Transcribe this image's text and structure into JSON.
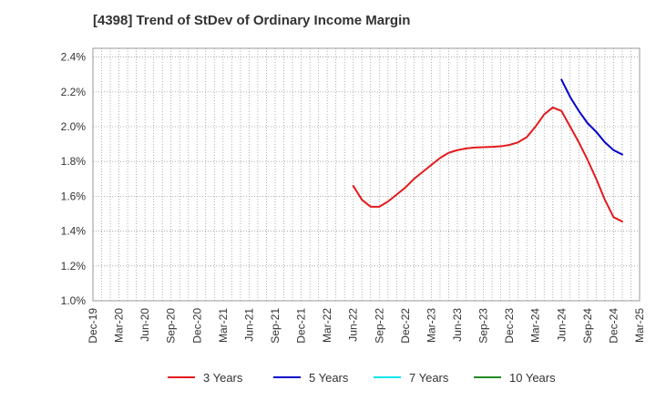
{
  "chart_data": {
    "type": "line",
    "title": "[4398]  Trend of StDev of Ordinary Income Margin",
    "xlabel": "",
    "ylabel": "",
    "x_tick_labels": [
      "Dec-19",
      "Mar-20",
      "Jun-20",
      "Sep-20",
      "Dec-20",
      "Mar-21",
      "Jun-21",
      "Sep-21",
      "Dec-21",
      "Mar-22",
      "Jun-22",
      "Sep-22",
      "Dec-22",
      "Mar-23",
      "Jun-23",
      "Sep-23",
      "Dec-23",
      "Mar-24",
      "Jun-24",
      "Sep-24",
      "Dec-24",
      "Mar-25"
    ],
    "y_tick_labels": [
      "1.0%",
      "1.2%",
      "1.4%",
      "1.6%",
      "1.8%",
      "2.0%",
      "2.2%",
      "2.4%"
    ],
    "ylim": [
      1.0,
      2.45
    ],
    "y_unit": "%",
    "grid": true,
    "legend_position": "bottom",
    "series": [
      {
        "name": "3 Years",
        "color": "#e41a1c",
        "points": [
          [
            "Jun-22",
            1.66
          ],
          [
            "Jul-22",
            1.58
          ],
          [
            "Aug-22",
            1.54
          ],
          [
            "Sep-22",
            1.54
          ],
          [
            "Oct-22",
            1.57
          ],
          [
            "Nov-22",
            1.61
          ],
          [
            "Dec-22",
            1.65
          ],
          [
            "Jan-23",
            1.7
          ],
          [
            "Feb-23",
            1.74
          ],
          [
            "Mar-23",
            1.78
          ],
          [
            "Apr-23",
            1.82
          ],
          [
            "May-23",
            1.85
          ],
          [
            "Jun-23",
            1.865
          ],
          [
            "Jul-23",
            1.875
          ],
          [
            "Aug-23",
            1.88
          ],
          [
            "Sep-23",
            1.882
          ],
          [
            "Oct-23",
            1.884
          ],
          [
            "Nov-23",
            1.887
          ],
          [
            "Dec-23",
            1.895
          ],
          [
            "Jan-24",
            1.91
          ],
          [
            "Feb-24",
            1.94
          ],
          [
            "Mar-24",
            2.0
          ],
          [
            "Apr-24",
            2.07
          ],
          [
            "May-24",
            2.11
          ],
          [
            "Jun-24",
            2.09
          ],
          [
            "Jul-24",
            2.0
          ],
          [
            "Aug-24",
            1.91
          ],
          [
            "Sep-24",
            1.81
          ],
          [
            "Oct-24",
            1.7
          ],
          [
            "Nov-24",
            1.58
          ],
          [
            "Dec-24",
            1.48
          ],
          [
            "Jan-25",
            1.455
          ]
        ]
      },
      {
        "name": "5 Years",
        "color": "#0000cc",
        "points": [
          [
            "Jun-24",
            2.27
          ],
          [
            "Jul-24",
            2.17
          ],
          [
            "Aug-24",
            2.09
          ],
          [
            "Sep-24",
            2.02
          ],
          [
            "Oct-24",
            1.97
          ],
          [
            "Nov-24",
            1.91
          ],
          [
            "Dec-24",
            1.865
          ],
          [
            "Jan-25",
            1.84
          ]
        ]
      },
      {
        "name": "7 Years",
        "color": "#00e5ee",
        "points": []
      },
      {
        "name": "10 Years",
        "color": "#228b22",
        "points": []
      }
    ]
  }
}
